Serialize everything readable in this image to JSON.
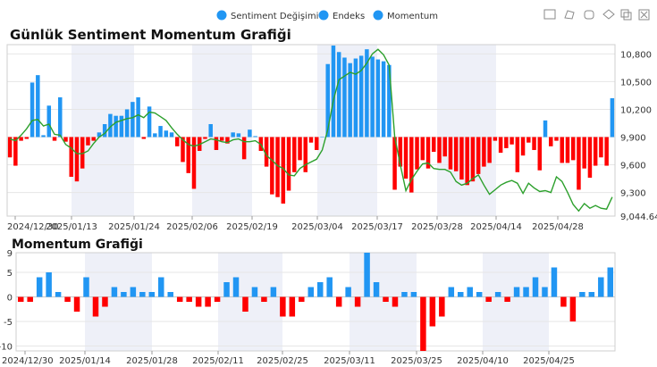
{
  "legend": [
    {
      "label": "Sentiment Değişimi",
      "color": "#2196f3"
    },
    {
      "label": "Endeks",
      "color": "#2196f3"
    },
    {
      "label": "Momentum",
      "color": "#2196f3"
    }
  ],
  "toolbar": [
    "zoom-select-icon",
    "lasso-icon",
    "rect-select-icon",
    "polygon-select-icon",
    "copy-icon",
    "clear-selection-icon"
  ],
  "colors": {
    "positive": "#2196f3",
    "negative": "#ff0000",
    "line": "#2ca02c",
    "band": "#eef0f8",
    "grid": "#e6e6e6"
  },
  "chart_data": [
    {
      "type": "bar",
      "title": "Günlük Sentiment Momentum Grafiği",
      "xlabel": "",
      "ylabel": "",
      "baseline": 9900,
      "ylim": [
        9044.64,
        10900
      ],
      "y_ticks": [
        9044.64,
        9300,
        9600,
        9900,
        10200,
        10500,
        10800
      ],
      "y_tick_labels": [
        "9,044.64",
        "9,300",
        "9,600",
        "9,900",
        "10,200",
        "10,500",
        "10,800"
      ],
      "x_tick_labels": [
        "2024/12/30",
        "2025/01/13",
        "2025/01/24",
        "2025/02/06",
        "2025/02/19",
        "2025/03/04",
        "2025/03/17",
        "2025/03/28",
        "2025/04/14",
        "2025/04/28"
      ],
      "series": [
        {
          "role": "bars",
          "values": [
            9680,
            9590,
            9860,
            9880,
            10490,
            10570,
            9920,
            10240,
            9860,
            10330,
            9850,
            9470,
            9420,
            9560,
            9810,
            9860,
            9950,
            10040,
            10150,
            10130,
            10130,
            10200,
            10280,
            10330,
            9880,
            10230,
            9940,
            10020,
            9970,
            9950,
            9800,
            9630,
            9510,
            9340,
            9750,
            9880,
            10040,
            9760,
            9860,
            9830,
            9950,
            9940,
            9660,
            9980,
            9910,
            9750,
            9580,
            9280,
            9250,
            9180,
            9320,
            9520,
            9650,
            9520,
            9840,
            9760,
            9900,
            10690,
            10890,
            10820,
            10760,
            10700,
            10750,
            10780,
            10850,
            10770,
            10740,
            10720,
            10680,
            9330,
            9580,
            9450,
            9300,
            9550,
            9650,
            9560,
            9740,
            9620,
            9690,
            9550,
            9530,
            9440,
            9380,
            9420,
            9500,
            9580,
            9620,
            9860,
            9730,
            9780,
            9820,
            9520,
            9700,
            9840,
            9760,
            9540,
            10080,
            9800,
            9860,
            9620,
            9620,
            9650,
            9330,
            9560,
            9460,
            9590,
            9680,
            9590,
            10320
          ]
        },
        {
          "role": "line",
          "values": [
            9880,
            9860,
            9920,
            9990,
            10080,
            10090,
            10020,
            10040,
            9930,
            9920,
            9820,
            9780,
            9720,
            9720,
            9750,
            9830,
            9900,
            9940,
            10010,
            10060,
            10080,
            10100,
            10110,
            10140,
            10110,
            10170,
            10160,
            10120,
            10080,
            10000,
            9930,
            9870,
            9820,
            9800,
            9820,
            9850,
            9880,
            9870,
            9850,
            9840,
            9870,
            9880,
            9850,
            9850,
            9860,
            9820,
            9700,
            9650,
            9590,
            9560,
            9490,
            9480,
            9560,
            9600,
            9630,
            9660,
            9760,
            9980,
            10300,
            10520,
            10560,
            10600,
            10580,
            10620,
            10700,
            10800,
            10850,
            10790,
            10680,
            9900,
            9600,
            9320,
            9440,
            9530,
            9610,
            9620,
            9560,
            9550,
            9550,
            9520,
            9420,
            9380,
            9400,
            9450,
            9490,
            9380,
            9280,
            9330,
            9380,
            9410,
            9430,
            9400,
            9290,
            9400,
            9350,
            9310,
            9320,
            9300,
            9470,
            9420,
            9300,
            9170,
            9100,
            9180,
            9130,
            9160,
            9130,
            9120,
            9250
          ]
        }
      ]
    },
    {
      "type": "bar",
      "title": "Momentum Grafiği",
      "xlabel": "",
      "ylabel": "",
      "ylim": [
        -11,
        9
      ],
      "y_ticks": [
        -10,
        -5,
        0,
        5,
        9
      ],
      "y_tick_labels": [
        "-10",
        "-5",
        "0",
        "5",
        "9"
      ],
      "x_tick_labels": [
        "2024/12/30",
        "2025/01/14",
        "2025/01/28",
        "2025/02/11",
        "2025/02/25",
        "2025/03/11",
        "2025/03/25",
        "2025/04/10",
        "2025/04/25"
      ],
      "values": [
        -1,
        -1,
        4,
        5,
        1,
        -1,
        -3,
        4,
        -4,
        -2,
        2,
        1,
        2,
        1,
        1,
        4,
        1,
        -1,
        -1,
        -2,
        -2,
        -1,
        3,
        4,
        -3,
        2,
        -1,
        2,
        -4,
        -4,
        -1,
        2,
        3,
        4,
        -2,
        2,
        -2,
        9,
        3,
        -1,
        -2,
        1,
        1,
        -11,
        -6,
        -4,
        2,
        1,
        2,
        1,
        -1,
        1,
        -1,
        2,
        2,
        4,
        2,
        6,
        -2,
        -5,
        1,
        1,
        4,
        6
      ]
    }
  ]
}
